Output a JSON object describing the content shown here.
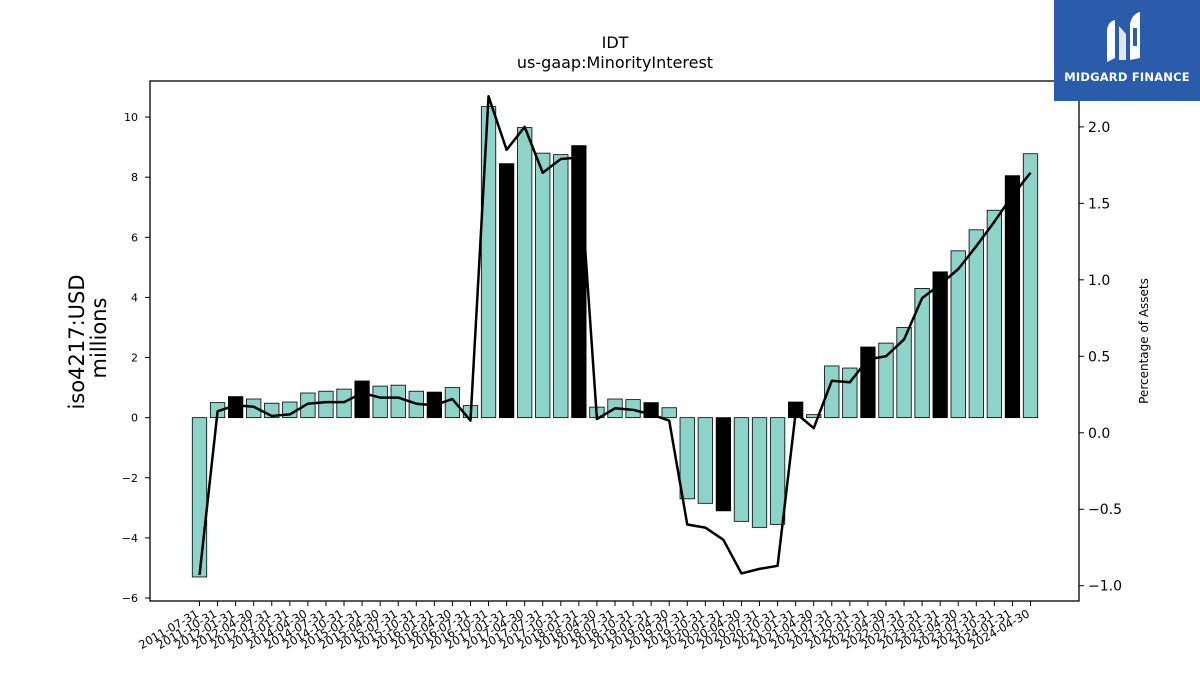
{
  "chart_data": {
    "type": "bar",
    "title": "IDT",
    "subtitle": "us-gaap:MinorityInterest",
    "ylabel_left": [
      "iso4217:USD",
      "millions"
    ],
    "ylabel_right": "Percentage of Assets",
    "ylim_left": [
      -6.1,
      11.2
    ],
    "ylim_right": [
      -1.1,
      2.3
    ],
    "yticks_left": [
      -6,
      -4,
      -2,
      0,
      2,
      4,
      6,
      8,
      10
    ],
    "yticks_right": [
      -1.0,
      -0.5,
      0.0,
      0.5,
      1.0,
      1.5,
      2.0
    ],
    "yticks_right_labels": [
      "−1.0",
      "−0.5",
      "0.0",
      "0.5",
      "1.0",
      "1.5",
      "2.0"
    ],
    "yticks_left_labels": [
      "−6",
      "−4",
      "−2",
      "0",
      "2",
      "4",
      "6",
      "8",
      "10"
    ],
    "grid": false,
    "categories": [
      "2011-07-31",
      "2011-10-31",
      "2012-01-31",
      "2012-04-30",
      "2012-07-31",
      "2013-01-31",
      "2014-04-30",
      "2014-07-31",
      "2014-10-31",
      "2015-01-31",
      "2015-04-30",
      "2015-07-31",
      "2015-10-31",
      "2016-01-31",
      "2016-04-30",
      "2016-07-31",
      "2016-10-31",
      "2017-01-31",
      "2017-04-30",
      "2017-07-31",
      "2017-10-31",
      "2018-01-31",
      "2018-04-30",
      "2018-07-31",
      "2018-10-31",
      "2019-01-31",
      "2019-04-30",
      "2019-07-31",
      "2019-10-31",
      "2020-01-31",
      "2020-04-30",
      "2020-07-31",
      "2020-10-31",
      "2021-01-31",
      "2021-04-30",
      "2021-07-31",
      "2021-10-31",
      "2022-01-31",
      "2022-04-30",
      "2022-07-31",
      "2022-10-31",
      "2023-01-31",
      "2023-04-30",
      "2023-07-31",
      "2023-10-31",
      "2024-01-31",
      "2024-04-30"
    ],
    "series": [
      {
        "type": "bar",
        "values": [
          -5.3,
          0.5,
          0.7,
          0.62,
          0.48,
          0.52,
          0.82,
          0.88,
          0.95,
          1.22,
          1.05,
          1.08,
          0.88,
          0.85,
          1.0,
          0.4,
          10.35,
          8.45,
          9.65,
          8.8,
          8.75,
          9.05,
          0.35,
          0.62,
          0.6,
          0.5,
          0.33,
          -2.7,
          -2.85,
          -3.1,
          -3.45,
          -3.65,
          -3.55,
          0.52,
          0.1,
          1.72,
          1.65,
          2.35,
          2.48,
          3.0,
          4.3,
          4.85,
          5.55,
          6.25,
          6.9,
          8.05,
          8.78
        ],
        "highlight": [
          false,
          false,
          true,
          false,
          false,
          false,
          false,
          false,
          false,
          true,
          false,
          false,
          false,
          true,
          false,
          false,
          false,
          true,
          false,
          false,
          false,
          true,
          false,
          false,
          false,
          true,
          false,
          false,
          false,
          true,
          false,
          false,
          false,
          true,
          false,
          false,
          false,
          true,
          false,
          false,
          false,
          true,
          false,
          false,
          false,
          true,
          false
        ],
        "color": "#8dd3c7",
        "highlight_color": "#000000"
      },
      {
        "type": "line",
        "axis": "right",
        "values": [
          -0.93,
          0.14,
          0.18,
          0.17,
          0.11,
          0.12,
          0.19,
          0.2,
          0.2,
          0.26,
          0.23,
          0.23,
          0.19,
          0.18,
          0.22,
          0.08,
          2.2,
          1.85,
          2.0,
          1.7,
          1.79,
          1.8,
          0.09,
          0.16,
          0.15,
          0.12,
          0.08,
          -0.6,
          -0.62,
          -0.7,
          -0.92,
          -0.89,
          -0.87,
          0.13,
          0.03,
          0.34,
          0.33,
          0.48,
          0.5,
          0.61,
          0.88,
          0.97,
          1.07,
          1.22,
          1.38,
          1.55,
          1.7
        ],
        "color": "#000000"
      }
    ]
  },
  "logo": {
    "text": "MIDGARD FINANCE",
    "color": "#2b5cab"
  }
}
